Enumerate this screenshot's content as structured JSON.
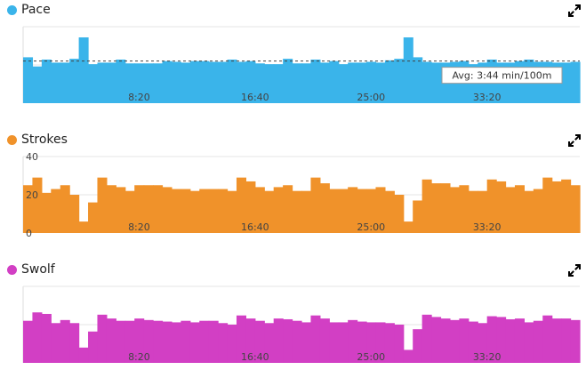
{
  "chart_data": [
    {
      "type": "area",
      "name": "Pace",
      "title": "Pace",
      "color": "#3ab4ea",
      "icon": "expand-icon",
      "x_ticks": [
        "8:20",
        "16:40",
        "25:00",
        "33:20"
      ],
      "x_tick_seconds": [
        500,
        1000,
        1500,
        2000
      ],
      "x_range_seconds": [
        0,
        2400
      ],
      "y_ticks": [],
      "grid": true,
      "average_line": true,
      "annotation": "Avg: 3:44 min/100m",
      "values": [
        60,
        48,
        57,
        53,
        53,
        58,
        86,
        51,
        53,
        53,
        57,
        52,
        52,
        52,
        52,
        55,
        54,
        53,
        55,
        55,
        54,
        54,
        57,
        54,
        55,
        52,
        51,
        51,
        58,
        52,
        52,
        57,
        53,
        55,
        51,
        53,
        53,
        54,
        53,
        56,
        58,
        86,
        60,
        54,
        53,
        53,
        54,
        55,
        51,
        53,
        57,
        53,
        53,
        55,
        57,
        54,
        54,
        53,
        53,
        54
      ]
    },
    {
      "type": "area",
      "name": "Strokes",
      "title": "Strokes",
      "color": "#f0922a",
      "icon": "expand-icon",
      "x_ticks": [
        "8:20",
        "16:40",
        "25:00",
        "33:20"
      ],
      "x_tick_seconds": [
        500,
        1000,
        1500,
        2000
      ],
      "x_range_seconds": [
        0,
        2400
      ],
      "y_ticks": [
        "40",
        "20",
        "0"
      ],
      "y_range": [
        0,
        40
      ],
      "grid": true,
      "values": [
        25,
        29,
        21,
        23,
        25,
        20,
        6,
        16,
        29,
        25,
        24,
        22,
        25,
        25,
        25,
        24,
        23,
        23,
        22,
        23,
        23,
        23,
        22,
        29,
        27,
        24,
        22,
        24,
        25,
        22,
        22,
        29,
        26,
        23,
        23,
        24,
        23,
        23,
        24,
        22,
        20,
        6,
        17,
        28,
        26,
        26,
        24,
        25,
        22,
        22,
        28,
        27,
        24,
        25,
        22,
        23,
        29,
        27,
        28,
        25
      ]
    },
    {
      "type": "area",
      "name": "Swolf",
      "title": "Swolf",
      "color": "#d23fc4",
      "icon": "expand-icon",
      "x_ticks": [
        "8:20",
        "16:40",
        "25:00",
        "33:20"
      ],
      "x_tick_seconds": [
        500,
        1000,
        1500,
        2000
      ],
      "x_range_seconds": [
        0,
        2400
      ],
      "y_ticks": [],
      "grid": true,
      "values": [
        55,
        66,
        64,
        52,
        56,
        52,
        20,
        41,
        63,
        58,
        55,
        55,
        58,
        56,
        55,
        54,
        53,
        55,
        53,
        55,
        55,
        52,
        50,
        62,
        58,
        55,
        52,
        58,
        57,
        55,
        53,
        62,
        58,
        53,
        53,
        56,
        54,
        53,
        53,
        52,
        50,
        17,
        44,
        63,
        60,
        58,
        56,
        58,
        54,
        52,
        61,
        60,
        57,
        58,
        53,
        55,
        62,
        58,
        58,
        56
      ]
    }
  ]
}
